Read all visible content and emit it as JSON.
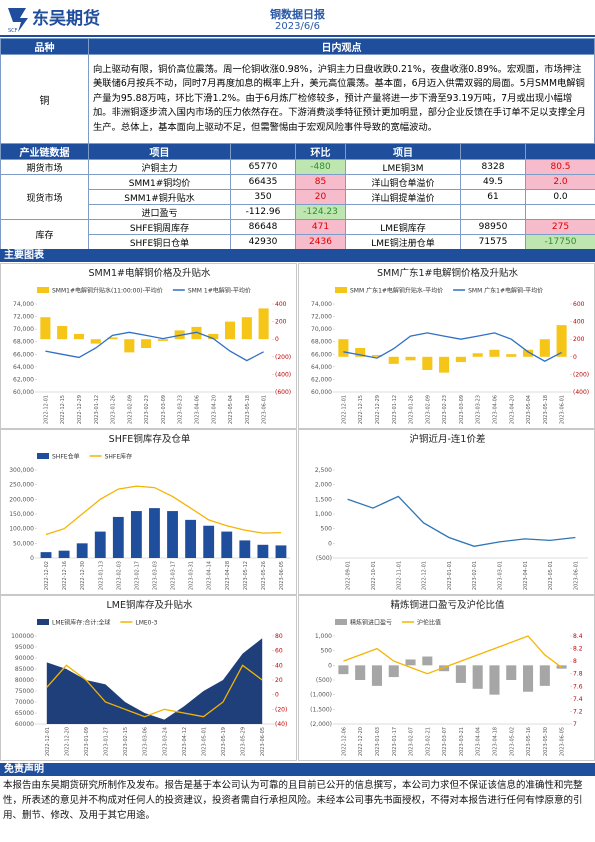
{
  "header": {
    "logo_text": "东吴期货",
    "logo_sub": "SCF",
    "title": "铜数据日报",
    "date": "2023/6/6"
  },
  "summary_table": {
    "header": [
      "品种",
      "日内观点"
    ],
    "variety": "铜",
    "view": "向上驱动有限，铜价高位震荡。周一伦铜收涨0.98%，沪铜主力日盘收跌0.21%，夜盘收涨0.89%。宏观面，市场押注美联储6月按兵不动，同时7月再度加息的概率上升，美元高位震荡。基本面，6月迈入供需双弱的局面。5月SMM电解铜产量为95.88万吨，环比下滑1.2%。由于6月炼厂检修较多，预计产量将进一步下滑至93.19万吨，7月或出现小幅增加。非洲铜逐步流入国内市场的压力依然存在。下游消费淡季特征预计更加明显，部分企业反馈在手订单不足以支撑全月生产。总体上，基本面向上驱动不足，但需警惕由于宏观风险事件导致的宽幅波动。"
  },
  "data_table": {
    "header": [
      "产业链数据",
      "项目",
      "环比",
      "项目"
    ],
    "groups": [
      {
        "name": "期货市场",
        "rows": [
          {
            "item": "沪铜主力",
            "value": "65770",
            "change": "-480",
            "item2": "LME铜3M",
            "value2": "8328",
            "change2": "80.5"
          }
        ]
      },
      {
        "name": "现货市场",
        "rows": [
          {
            "item": "SMM1#铜均价",
            "value": "66435",
            "change": "85",
            "item2": "洋山铜仓单溢价",
            "value2": "49.5",
            "change2": "2.0"
          },
          {
            "item": "SMM1#铜升贴水",
            "value": "350",
            "change": "20",
            "item2": "洋山铜提单溢价",
            "value2": "61",
            "change2": "0.0"
          },
          {
            "item": "进口盈亏",
            "value": "-112.96",
            "change": "-124.23"
          }
        ]
      },
      {
        "name": "库存",
        "rows": [
          {
            "item": "SHFE铜周库存",
            "value": "86648",
            "change": "471",
            "item2": "LME铜库存",
            "value2": "98950",
            "change2": "275"
          },
          {
            "item": "SHFE铜日仓单",
            "value": "42930",
            "change": "2436",
            "item2": "LME铜注册仓单",
            "value2": "71575",
            "change2": "-17750"
          }
        ]
      }
    ]
  },
  "charts_heading": "主要图表",
  "chart_data": [
    {
      "type": "combo",
      "title": "SMM1#电解铜价格及升贴水",
      "categories": [
        "2022-12-01",
        "2022-12-15",
        "2022-12-29",
        "2023-01-12",
        "2023-01-26",
        "2023-02-09",
        "2023-02-23",
        "2023-03-09",
        "2023-03-23",
        "2023-04-06",
        "2023-04-20",
        "2023-05-04",
        "2023-05-18",
        "2023-06-01"
      ],
      "series": [
        {
          "name": "SMM1#电解铜升贴水(11:00:00)-平均价",
          "kind": "bar",
          "axis": "y2",
          "color": "#f5c518",
          "values": [
            250,
            150,
            60,
            -50,
            20,
            -150,
            -100,
            -20,
            100,
            140,
            60,
            200,
            250,
            350
          ]
        },
        {
          "name": "SMM 1#电解铜-平均价",
          "kind": "line",
          "color": "#2f6fc6",
          "values": [
            66500,
            66000,
            65500,
            67000,
            69000,
            69500,
            69000,
            68500,
            69000,
            69500,
            68500,
            66500,
            65000,
            66400
          ]
        }
      ],
      "ylim": [
        60000,
        74000
      ],
      "yticks": [
        {
          "value": 60000,
          "label": "60,000"
        },
        {
          "value": 62000,
          "label": "62,000"
        },
        {
          "value": 64000,
          "label": "64,000"
        },
        {
          "value": 66000,
          "label": "66,000"
        },
        {
          "value": 68000,
          "label": "68,000"
        },
        {
          "value": 70000,
          "label": "70,000"
        },
        {
          "value": 72000,
          "label": "72,000"
        },
        {
          "value": 74000,
          "label": "74,000"
        }
      ],
      "y2lim": [
        -600,
        400
      ],
      "y2ticks": [
        400,
        200,
        0,
        {
          "value": -200,
          "label": "(200)"
        },
        {
          "value": -400,
          "label": "(400)"
        },
        {
          "value": -600,
          "label": "(600)"
        }
      ]
    },
    {
      "type": "combo",
      "title": "SMM广东1#电解铜价格及升贴水",
      "categories": [
        "2022-12-01",
        "2022-12-15",
        "2022-12-29",
        "2023-01-12",
        "2023-01-26",
        "2023-02-09",
        "2023-02-23",
        "2023-03-09",
        "2023-03-23",
        "2023-04-06",
        "2023-04-20",
        "2023-05-04",
        "2023-05-18",
        "2023-06-01"
      ],
      "series": [
        {
          "name": "SMM 广东1#电解铜升贴水-平均价",
          "kind": "bar",
          "axis": "y2",
          "color": "#f5c518",
          "values": [
            200,
            100,
            20,
            -80,
            -40,
            -150,
            -180,
            -60,
            40,
            80,
            30,
            80,
            200,
            360
          ]
        },
        {
          "name": "SMM 广东1#电解铜-平均价",
          "kind": "line",
          "color": "#2f6fc6",
          "values": [
            66400,
            65900,
            65400,
            66900,
            68900,
            69400,
            68900,
            68400,
            68900,
            69400,
            68400,
            66400,
            64900,
            66300
          ]
        }
      ],
      "ylim": [
        60000,
        74000
      ],
      "yticks": [
        {
          "value": 60000,
          "label": "60,000"
        },
        {
          "value": 62000,
          "label": "62,000"
        },
        {
          "value": 64000,
          "label": "64,000"
        },
        {
          "value": 66000,
          "label": "66,000"
        },
        {
          "value": 68000,
          "label": "68,000"
        },
        {
          "value": 70000,
          "label": "70,000"
        },
        {
          "value": 72000,
          "label": "72,000"
        },
        {
          "value": 74000,
          "label": "74,000"
        }
      ],
      "y2lim": [
        -400,
        600
      ],
      "y2ticks": [
        600,
        400,
        200,
        0,
        {
          "value": -200,
          "label": "(200)"
        },
        {
          "value": -400,
          "label": "(400)"
        }
      ]
    },
    {
      "type": "combo",
      "title": "SHFE铜库存及仓单",
      "categories": [
        "2022-12-02",
        "2022-12-16",
        "2022-12-30",
        "2023-01-13",
        "2023-02-03",
        "2023-02-17",
        "2023-03-03",
        "2023-03-17",
        "2023-03-31",
        "2023-04-14",
        "2023-04-28",
        "2023-05-12",
        "2023-05-26",
        "2023-06-05"
      ],
      "series": [
        {
          "name": "SHFE仓单",
          "kind": "bar",
          "color": "#1f4e9c",
          "values": [
            20000,
            25000,
            50000,
            90000,
            140000,
            160000,
            170000,
            160000,
            130000,
            110000,
            90000,
            60000,
            45000,
            42930
          ]
        },
        {
          "name": "SHFE库存",
          "kind": "line",
          "color": "#f5b400",
          "values": [
            80000,
            100000,
            150000,
            200000,
            235000,
            245000,
            240000,
            210000,
            170000,
            130000,
            110000,
            95000,
            85000,
            86648
          ]
        }
      ],
      "ylim": [
        0,
        300000
      ],
      "yticks": [
        0,
        {
          "value": 50000,
          "label": "50,000"
        },
        {
          "value": 100000,
          "label": "100,000"
        },
        {
          "value": 150000,
          "label": "150,000"
        },
        {
          "value": 200000,
          "label": "200,000"
        },
        {
          "value": 250000,
          "label": "250,000"
        },
        {
          "value": 300000,
          "label": "300,000"
        }
      ]
    },
    {
      "type": "line",
      "title": "沪铜近月-连1价差",
      "categories": [
        "2022-09-01",
        "2022-10-01",
        "2022-11-01",
        "2022-12-01",
        "2023-01-01",
        "2023-02-01",
        "2023-03-01",
        "2023-04-01",
        "2023-05-01",
        "2023-06-01"
      ],
      "series": [
        {
          "name": "沪铜近月-连1价差",
          "kind": "line",
          "color": "#2e75b6",
          "values": [
            1500,
            1200,
            1600,
            700,
            200,
            -100,
            50,
            150,
            100,
            200
          ]
        }
      ],
      "ylim": [
        -500,
        2500
      ],
      "yticks": [
        {
          "value": -500,
          "label": "(500)"
        },
        0,
        500,
        {
          "value": 1000,
          "label": "1,000"
        },
        {
          "value": 1500,
          "label": "1,500"
        },
        {
          "value": 2000,
          "label": "2,000"
        },
        {
          "value": 2500,
          "label": "2,500"
        }
      ]
    },
    {
      "type": "combo",
      "title": "LME铜库存及升贴水",
      "categories": [
        "2022-12-01",
        "2022-12-20",
        "2023-01-09",
        "2023-01-27",
        "2023-02-15",
        "2023-03-06",
        "2023-03-24",
        "2023-04-12",
        "2023-05-01",
        "2023-05-19",
        "2023-05-29",
        "2023-06-05"
      ],
      "series": [
        {
          "name": "LME铜库存:合计:全球",
          "kind": "area",
          "color": "#1f3f7a",
          "values": [
            88000,
            85000,
            80000,
            78000,
            70000,
            65000,
            62000,
            68000,
            75000,
            80000,
            92000,
            98950
          ]
        },
        {
          "name": "LME0-3",
          "kind": "line",
          "axis": "y2",
          "color": "#f5b400",
          "values": [
            10,
            40,
            20,
            -10,
            -20,
            -30,
            -20,
            -25,
            -30,
            -10,
            40,
            20
          ]
        }
      ],
      "ylim": [
        60000,
        100000
      ],
      "yticks": [
        60000,
        65000,
        70000,
        75000,
        80000,
        85000,
        90000,
        95000,
        100000
      ],
      "y2lim": [
        -40,
        80
      ],
      "y2ticks": [
        80,
        60,
        40,
        20,
        0,
        {
          "value": -20,
          "label": "(20)"
        },
        {
          "value": -40,
          "label": "(40)"
        }
      ]
    },
    {
      "type": "combo",
      "title": "精炼铜进口盈亏及沪伦比值",
      "categories": [
        "2022-12-06",
        "2022-12-20",
        "2023-01-03",
        "2023-01-17",
        "2023-02-07",
        "2023-02-21",
        "2023-03-07",
        "2023-03-21",
        "2023-04-04",
        "2023-04-18",
        "2023-05-02",
        "2023-05-16",
        "2023-05-30",
        "2023-06-05"
      ],
      "series": [
        {
          "name": "精炼铜进口盈亏",
          "kind": "bar",
          "color": "#a6a6a6",
          "values": [
            -300,
            -500,
            -700,
            -400,
            200,
            300,
            -200,
            -600,
            -800,
            -1000,
            -500,
            -900,
            -700,
            -113
          ]
        },
        {
          "name": "沪伦比值",
          "kind": "line",
          "axis": "y2",
          "color": "#f5b400",
          "values": [
            8.0,
            8.1,
            8.2,
            8.0,
            7.9,
            7.8,
            7.9,
            8.0,
            8.1,
            8.2,
            8.3,
            8.4,
            8.1,
            7.9
          ]
        }
      ],
      "ylim": [
        -2000,
        1000
      ],
      "yticks": [
        {
          "value": 1000,
          "label": "1,000"
        },
        500,
        0,
        {
          "value": -500,
          "label": "(500)"
        },
        {
          "value": -1000,
          "label": "(1,000)"
        },
        {
          "value": -1500,
          "label": "(1,500)"
        },
        {
          "value": -2000,
          "label": "(2,000)"
        }
      ],
      "y2lim": [
        7,
        8.4
      ],
      "y2ticks": [
        8.4,
        8.2,
        8,
        7.8,
        7.6,
        7.4,
        7.2,
        7
      ]
    }
  ],
  "disclaimer": {
    "title": "免责声明",
    "text": "本报告由东吴期货研究所制作及发布。报告是基于本公司认为可靠的且目前已公开的信息撰写，本公司力求但不保证该信息的准确性和完整性，所表述的意见并不构成对任何人的投资建议，投资者需自行承担风险。未经本公司事先书面授权，不得对本报告进行任何有悖原意的引用、删节、修改、及用于其它用途。"
  }
}
